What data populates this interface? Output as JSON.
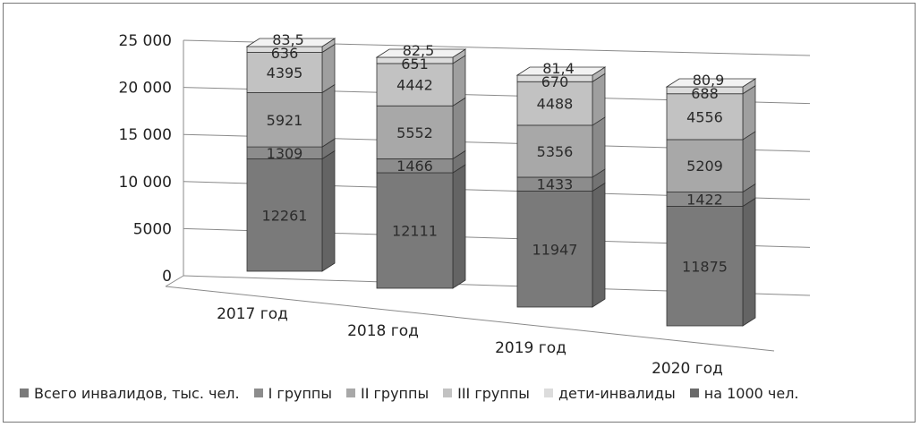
{
  "chart_data": {
    "type": "bar",
    "stacked": true,
    "three_d": true,
    "categories": [
      "2017 год",
      "2018 год",
      "2019 год",
      "2020 год"
    ],
    "series": [
      {
        "name": "Всего инвалидов, тыс. чел.",
        "values": [
          12261,
          12111,
          11947,
          11875
        ],
        "color": "#7a7a7a"
      },
      {
        "name": "I группы",
        "values": [
          1309,
          1466,
          1433,
          1422
        ],
        "color": "#8c8c8c"
      },
      {
        "name": "II группы",
        "values": [
          5921,
          5552,
          5356,
          5209
        ],
        "color": "#a8a8a8"
      },
      {
        "name": "III группы",
        "values": [
          4395,
          4442,
          4488,
          4556
        ],
        "color": "#c2c2c2"
      },
      {
        "name": "дети-инвалиды",
        "values": [
          636,
          651,
          670,
          688
        ],
        "color": "#dcdcdc"
      },
      {
        "name": "на 1000 чел.",
        "values": [
          83.5,
          82.5,
          81.4,
          80.9
        ],
        "color": "#6a6a6a"
      }
    ],
    "series_labels": [
      [
        "12261",
        "12111",
        "11947",
        "11875"
      ],
      [
        "1309",
        "1466",
        "1433",
        "1422"
      ],
      [
        "5921",
        "5552",
        "5356",
        "5209"
      ],
      [
        "4395",
        "4442",
        "4488",
        "4556"
      ],
      [
        "636",
        "651",
        "670",
        "688"
      ],
      [
        "83,5",
        "82,5",
        "81,4",
        "80,9"
      ]
    ],
    "y_ticks": [
      "0",
      "5000",
      "10 000",
      "15 000",
      "20 000",
      "25 000"
    ],
    "y_tick_values": [
      0,
      5000,
      10000,
      15000,
      20000,
      25000
    ],
    "ylim": [
      0,
      25000
    ],
    "grid": true,
    "legend_position": "bottom"
  }
}
